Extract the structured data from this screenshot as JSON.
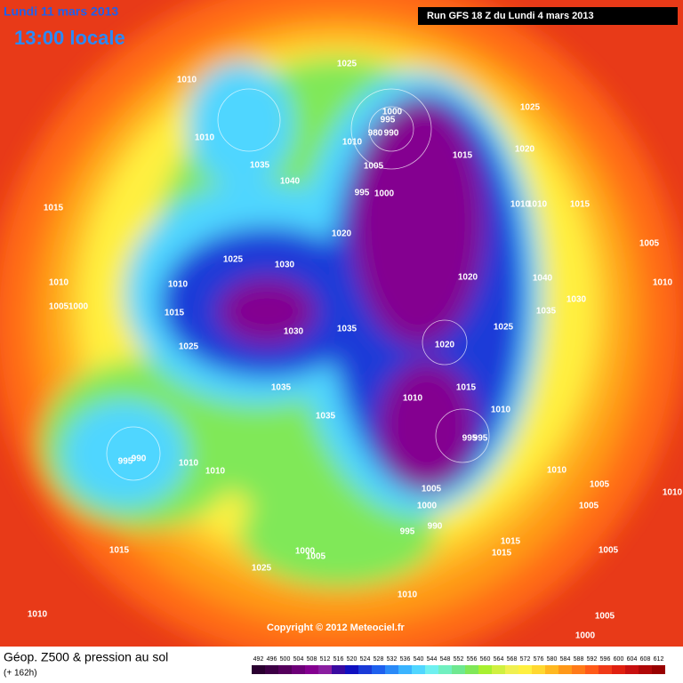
{
  "header": {
    "date": "Lundi 11 mars 2013",
    "time": "13:00 locale",
    "run": "Run GFS 18 Z du Lundi 4 mars 2013"
  },
  "map": {
    "isobar_labels": [
      "1025",
      "1010",
      "1025",
      "1000",
      "995",
      "980",
      "990",
      "1010",
      "1010",
      "1020",
      "1015",
      "1005",
      "1035",
      "1040",
      "995",
      "1000",
      "1015",
      "1010",
      "1010",
      "1015",
      "1020",
      "1005",
      "1025",
      "1030",
      "1010",
      "1010",
      "1010",
      "1020",
      "1040",
      "1030",
      "1005",
      "1000",
      "1015",
      "1035",
      "1035",
      "1030",
      "1025",
      "1020",
      "1025",
      "1015",
      "1035",
      "1010",
      "1010",
      "1035",
      "995",
      "995",
      "995",
      "990",
      "1010",
      "1010",
      "1010",
      "1005",
      "1005",
      "1010",
      "1005",
      "1000",
      "995",
      "990",
      "1015",
      "1015",
      "1015",
      "1025",
      "1000",
      "1005",
      "1005",
      "1010",
      "1010",
      "1005",
      "1000"
    ]
  },
  "copyright": "Copyright © 2012 Meteociel.fr",
  "footer": {
    "title": "Géop. Z500 & pression au sol",
    "lead": "(+ 162h)"
  },
  "colorbar": {
    "values": [
      492,
      496,
      500,
      504,
      508,
      512,
      516,
      520,
      524,
      528,
      532,
      536,
      540,
      544,
      548,
      552,
      556,
      560,
      564,
      568,
      572,
      576,
      580,
      584,
      588,
      592,
      596,
      600,
      604,
      608,
      612
    ],
    "colors": [
      "#2a0030",
      "#3d0045",
      "#55005c",
      "#6d0078",
      "#840090",
      "#8a1ea0",
      "#3a0aa0",
      "#1010c0",
      "#1a3ad8",
      "#1e60ee",
      "#2a8af8",
      "#3ab4ff",
      "#50d6ff",
      "#6ef0f0",
      "#70f0c0",
      "#6ee890",
      "#80e858",
      "#a8f030",
      "#d0f040",
      "#f0f050",
      "#fff040",
      "#ffd830",
      "#ffb820",
      "#ff9818",
      "#ff7a18",
      "#ff5a18",
      "#f03a18",
      "#e02010",
      "#c81010",
      "#b00808",
      "#980000"
    ]
  }
}
